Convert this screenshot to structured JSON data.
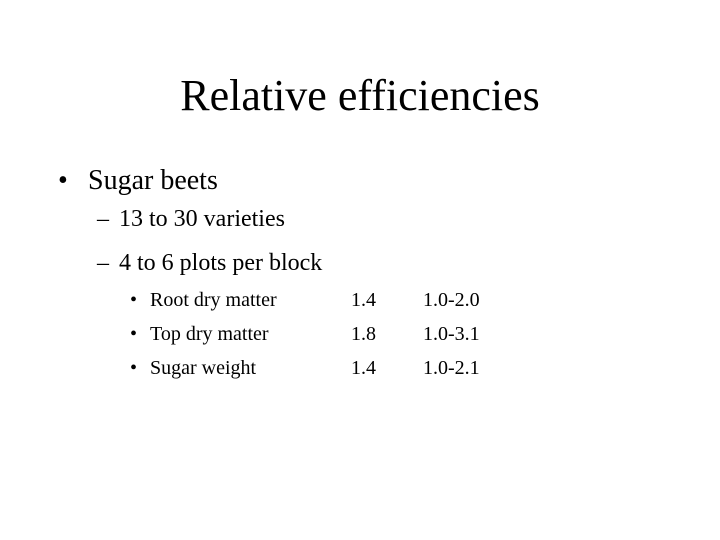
{
  "title": "Relative efficiencies",
  "bullet": {
    "mark": "•",
    "text": "Sugar beets"
  },
  "subbullets": [
    {
      "mark": "–",
      "text": "13 to 30 varieties"
    },
    {
      "mark": "–",
      "text": "4 to 6 plots per block"
    }
  ],
  "table": {
    "mark": "•",
    "rows": [
      {
        "name": "Root dry matter",
        "value": "1.4",
        "range": "1.0-2.0"
      },
      {
        "name": "Top dry matter",
        "value": "1.8",
        "range": "1.0-3.1"
      },
      {
        "name": "Sugar weight",
        "value": "1.4",
        "range": "1.0-2.1"
      }
    ]
  }
}
